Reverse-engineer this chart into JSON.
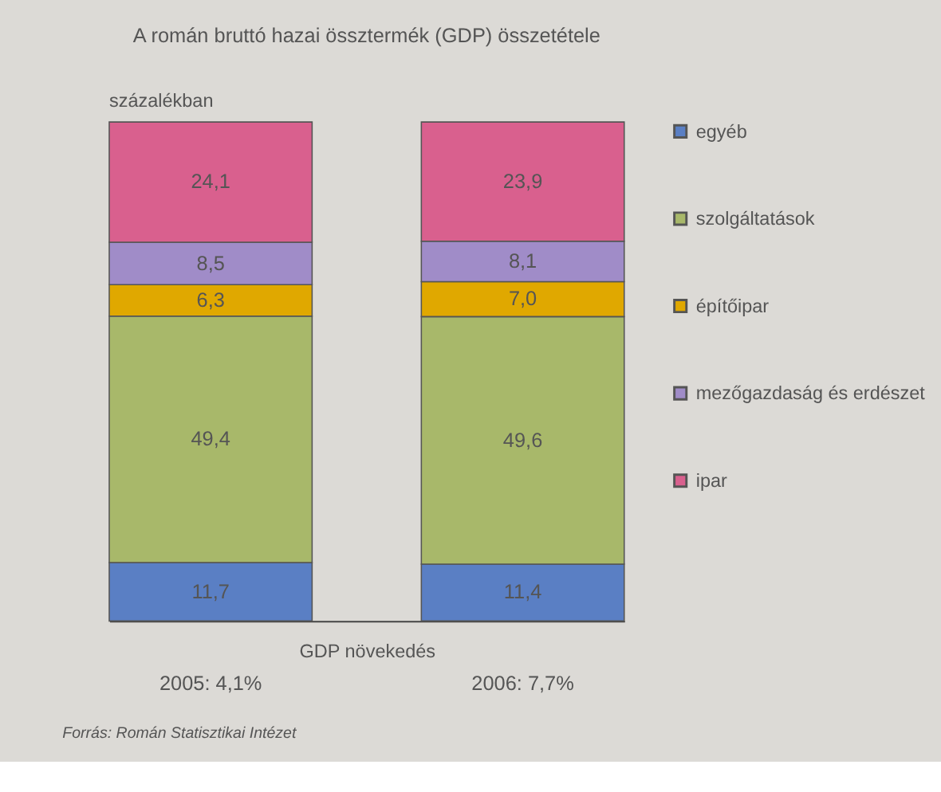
{
  "chart_data": {
    "type": "bar",
    "stacked": true,
    "title": "A román bruttó hazai össztermék (GDP) összetétele",
    "ylabel": "százalékban",
    "xlabel": "GDP növekedés",
    "categories": [
      "2005: 4,1%",
      "2006: 7,7%"
    ],
    "ylim": [
      0,
      100
    ],
    "tick_labels": "x",
    "legend": "right",
    "grid": false,
    "series": [
      {
        "name": "egyéb",
        "color": "#5a7fc4",
        "values": [
          11.7,
          11.4
        ],
        "value_labels": [
          "11,7",
          "11,4"
        ]
      },
      {
        "name": "szolgáltatások",
        "color": "#a8b86a",
        "values": [
          49.4,
          49.6
        ],
        "value_labels": [
          "49,4",
          "49,6"
        ]
      },
      {
        "name": "építőipar",
        "color": "#e0a800",
        "values": [
          6.3,
          7.0
        ],
        "value_labels": [
          "6,3",
          "7,0"
        ]
      },
      {
        "name": "mezőgazdaság és erdészet",
        "color": "#a08cc8",
        "values": [
          8.5,
          8.1
        ],
        "value_labels": [
          "8,5",
          "8,1"
        ]
      },
      {
        "name": "ipar",
        "color": "#d9608e",
        "values": [
          24.1,
          23.9
        ],
        "value_labels": [
          "24,1",
          "23,9"
        ]
      }
    ],
    "annotations": [
      "Forrás: Román Statisztikai Intézet"
    ]
  }
}
